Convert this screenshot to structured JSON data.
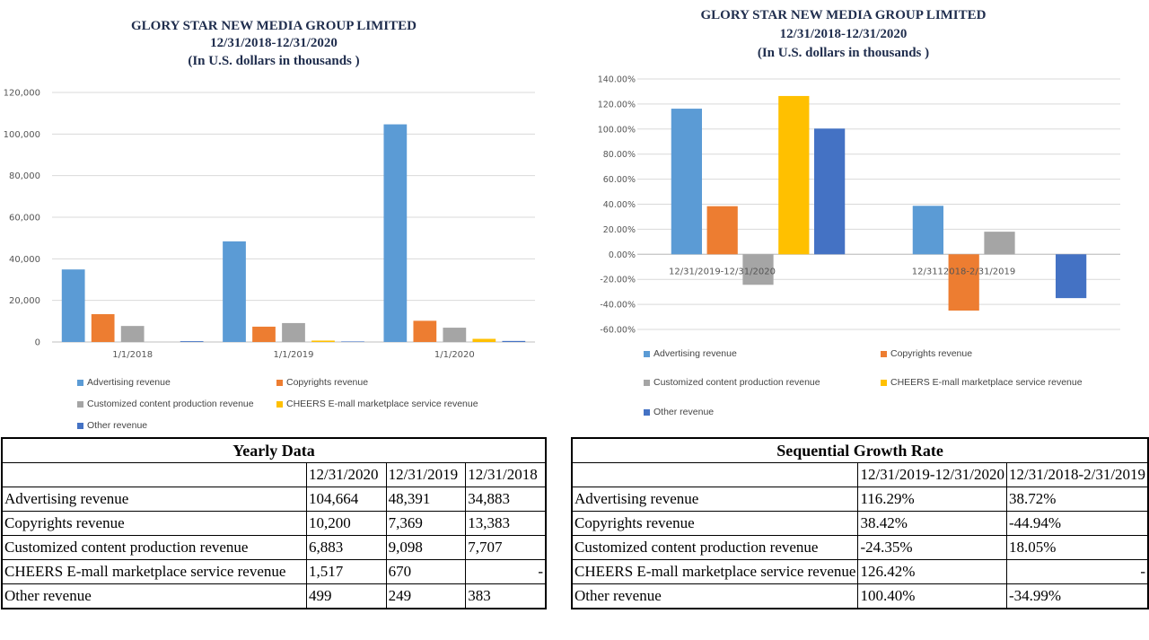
{
  "chart_data": [
    {
      "type": "bar",
      "title": "GLORY STAR NEW MEDIA GROUP LIMITED",
      "subtitle": "12/31/2018-12/31/2020",
      "subtitle2": "(In U.S. dollars in thousands )",
      "categories": [
        "1/1/2018",
        "1/1/2019",
        "1/1/2020"
      ],
      "ylim": [
        0,
        120000
      ],
      "yticks": [
        "0",
        "20,000",
        "40,000",
        "60,000",
        "80,000",
        "100,000",
        "120,000"
      ],
      "ytick_values": [
        0,
        20000,
        40000,
        60000,
        80000,
        100000,
        120000
      ],
      "grid": true,
      "legend": "bottom",
      "series": [
        {
          "name": "Advertising revenue",
          "values": [
            34883,
            48391,
            104664
          ],
          "color": "#5b9bd5"
        },
        {
          "name": "Copyrights revenue",
          "values": [
            13383,
            7369,
            10200
          ],
          "color": "#ed7d31"
        },
        {
          "name": "Customized content production revenue",
          "values": [
            7707,
            9098,
            6883
          ],
          "color": "#a5a5a5"
        },
        {
          "name": "CHEERS E-mall marketplace service revenue",
          "values": [
            0,
            670,
            1517
          ],
          "color": "#ffc000"
        },
        {
          "name": "Other revenue",
          "values": [
            383,
            249,
            499
          ],
          "color": "#4472c4"
        }
      ]
    },
    {
      "type": "bar",
      "title": "GLORY STAR NEW MEDIA GROUP LIMITED",
      "subtitle": "12/31/2018-12/31/2020",
      "subtitle2": "(In U.S. dollars in thousands )",
      "categories": [
        "12/31/2019-12/31/2020",
        "12/3112018-2/31/2019"
      ],
      "ylim": [
        -60,
        140
      ],
      "yticks": [
        "-60.00%",
        "-40.00%",
        "-20.00%",
        "0.00%",
        "20.00%",
        "40.00%",
        "60.00%",
        "80.00%",
        "100.00%",
        "120.00%",
        "140.00%"
      ],
      "ytick_values": [
        -60,
        -40,
        -20,
        0,
        20,
        40,
        60,
        80,
        100,
        120,
        140
      ],
      "grid": true,
      "legend": "bottom",
      "series": [
        {
          "name": "Advertising revenue",
          "values": [
            116.29,
            38.72
          ],
          "color": "#5b9bd5"
        },
        {
          "name": "Copyrights revenue",
          "values": [
            38.42,
            -44.94
          ],
          "color": "#ed7d31"
        },
        {
          "name": "Customized content production revenue",
          "values": [
            -24.35,
            18.05
          ],
          "color": "#a5a5a5"
        },
        {
          "name": "CHEERS E-mall marketplace service revenue",
          "values": [
            126.42,
            0
          ],
          "color": "#ffc000"
        },
        {
          "name": "Other revenue",
          "values": [
            100.4,
            -34.99
          ],
          "color": "#4472c4"
        }
      ]
    }
  ],
  "tables": {
    "yearly": {
      "title": "Yearly Data",
      "columns": [
        "12/31/2020",
        "12/31/2019",
        "12/31/2018"
      ],
      "rows": [
        {
          "label": "Advertising revenue",
          "cells": [
            "104,664",
            "48,391",
            "34,883"
          ]
        },
        {
          "label": "Copyrights revenue",
          "cells": [
            "10,200",
            "7,369",
            "13,383"
          ]
        },
        {
          "label": "Customized content production revenue",
          "cells": [
            "6,883",
            "9,098",
            "7,707"
          ]
        },
        {
          "label": "CHEERS E-mall marketplace service revenue",
          "cells": [
            "1,517",
            "670",
            "-"
          ]
        },
        {
          "label": "Other revenue",
          "cells": [
            "499",
            "249",
            "383"
          ]
        }
      ]
    },
    "growth": {
      "title": "Sequential Growth Rate",
      "columns": [
        "12/31/2019-12/31/2020",
        "12/31/2018-2/31/2019"
      ],
      "rows": [
        {
          "label": "Advertising revenue",
          "cells": [
            "116.29%",
            "38.72%"
          ]
        },
        {
          "label": "Copyrights revenue",
          "cells": [
            "38.42%",
            "-44.94%"
          ]
        },
        {
          "label": "Customized content production revenue",
          "cells": [
            "-24.35%",
            "18.05%"
          ]
        },
        {
          "label": "CHEERS E-mall marketplace service revenue",
          "cells": [
            "126.42%",
            "-"
          ]
        },
        {
          "label": "Other revenue",
          "cells": [
            "100.40%",
            "-34.99%"
          ]
        }
      ]
    }
  }
}
